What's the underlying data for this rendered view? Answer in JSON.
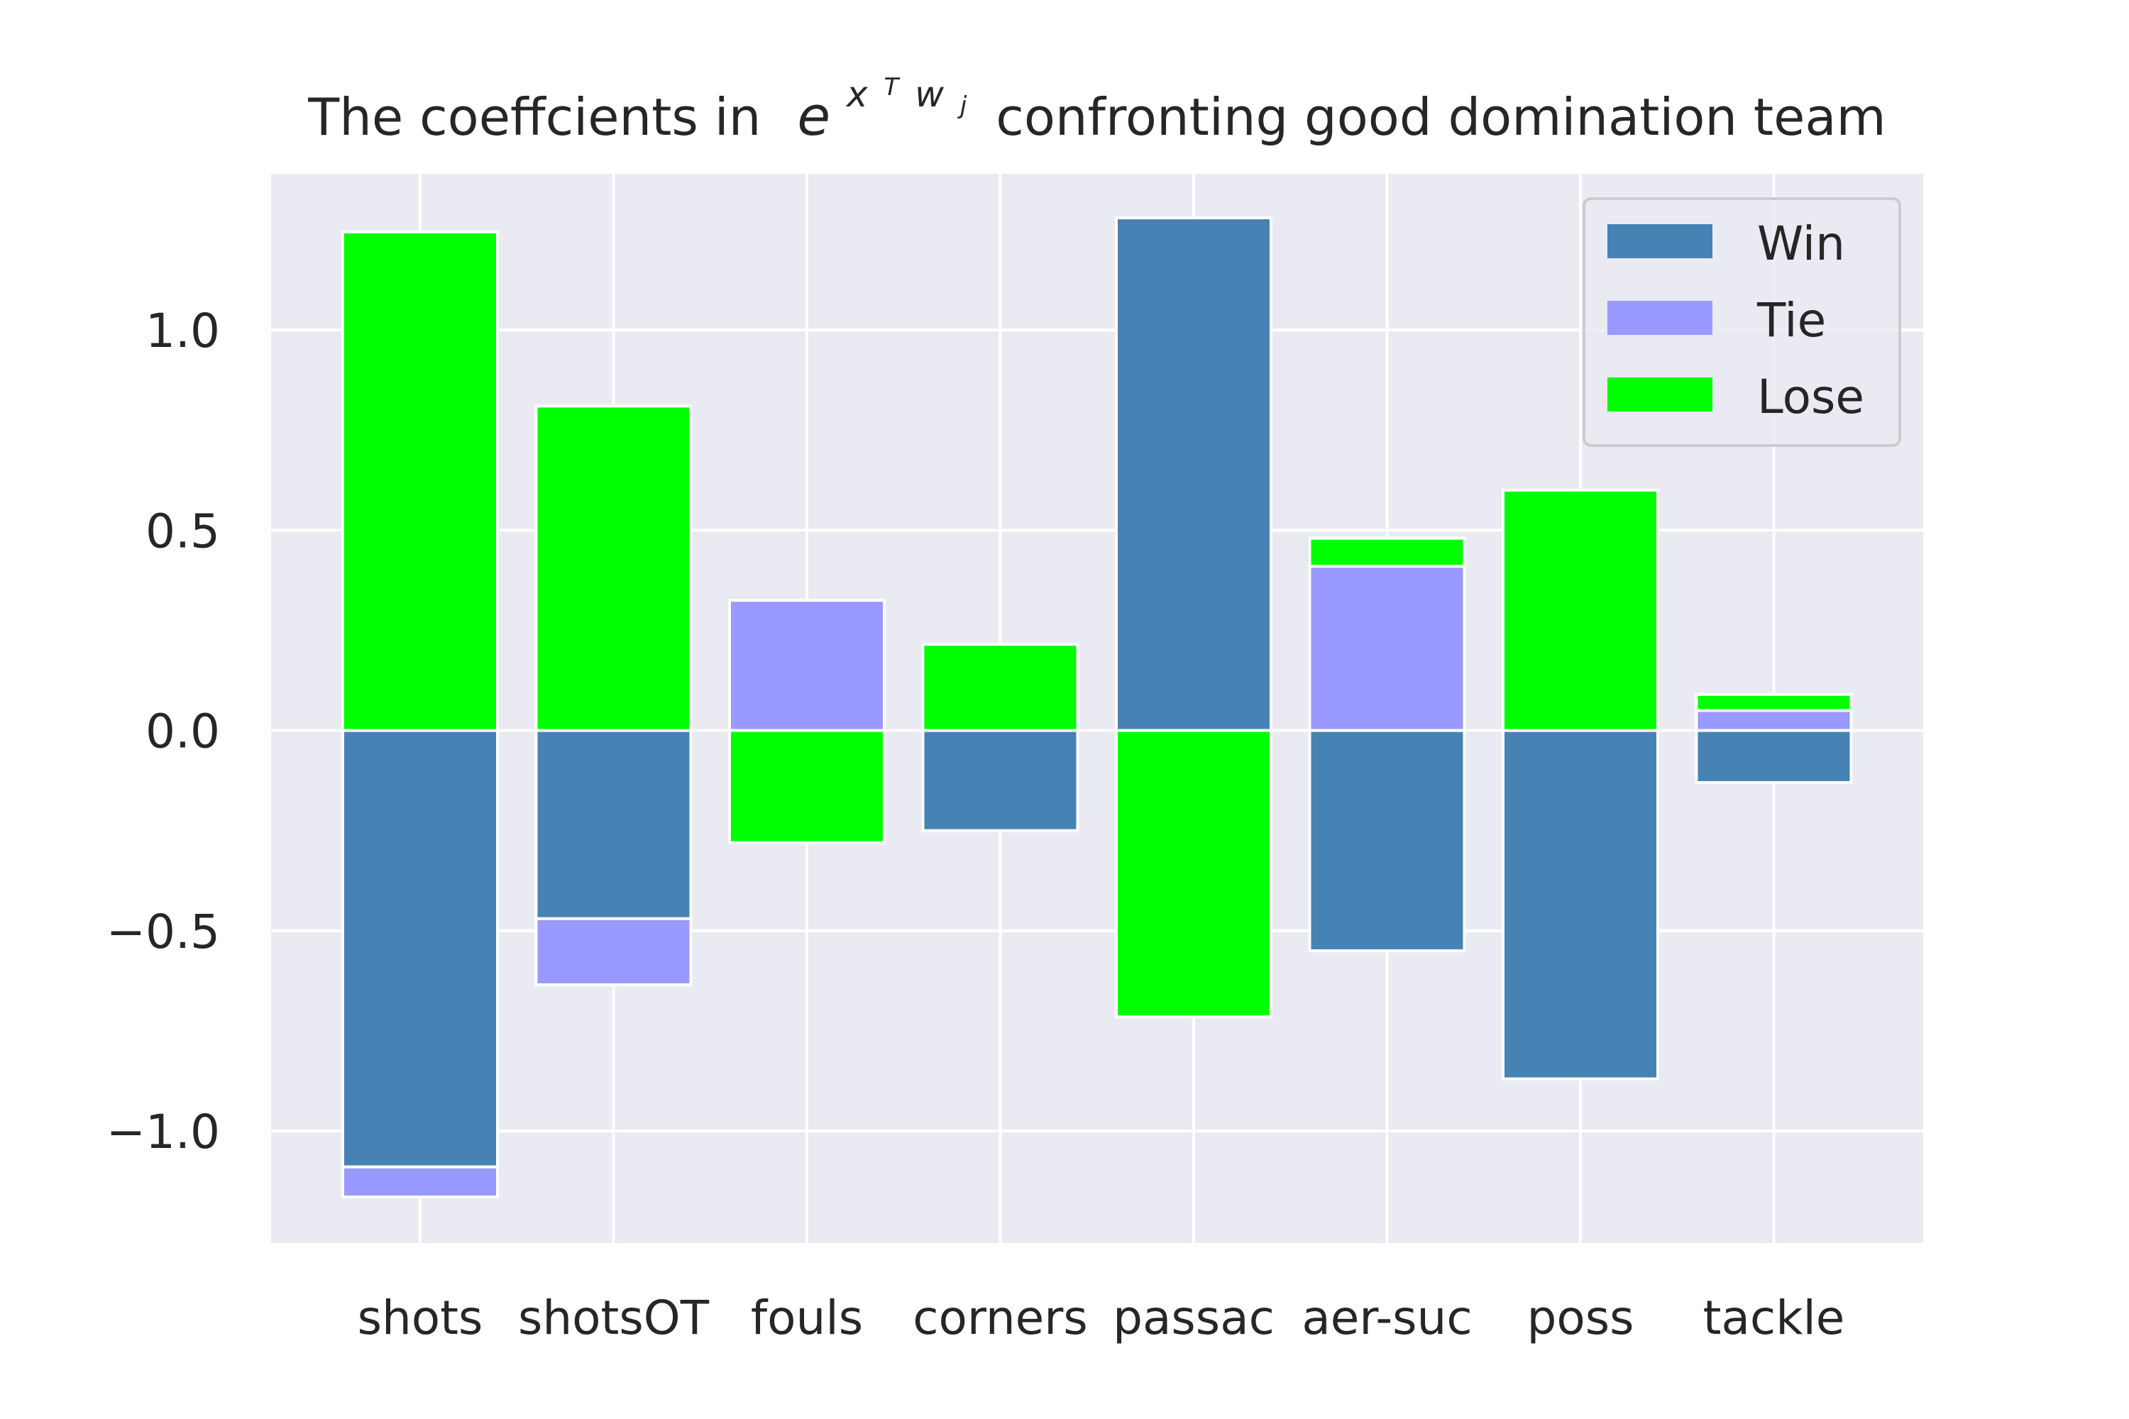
{
  "chart_data": {
    "type": "bar",
    "stacked": true,
    "title": {
      "prefix": "The coeffcients in",
      "math_base": "e",
      "math_sup_x": "x",
      "math_sup_T": "T",
      "math_sup_w": "w",
      "math_sub_j": "j",
      "suffix": "confronting good domination team"
    },
    "xlabel": "",
    "ylabel": "",
    "categories": [
      "shots",
      "shotsOT",
      "fouls",
      "corners",
      "passac",
      "aer-suc",
      "poss",
      "tackle"
    ],
    "series": [
      {
        "name": "Win",
        "color": "#4682b4",
        "values": [
          -1.09,
          -0.47,
          0.0,
          -0.25,
          1.28,
          -0.55,
          -0.87,
          -0.13
        ]
      },
      {
        "name": "Tie",
        "color": "#9999ff",
        "values": [
          -0.075,
          -0.165,
          0.325,
          0.0,
          0.0,
          0.41,
          0.0,
          0.05
        ]
      },
      {
        "name": "Lose",
        "color": "#00ff00",
        "values": [
          1.245,
          0.81,
          -0.28,
          0.215,
          -0.715,
          0.07,
          0.6,
          0.04
        ]
      }
    ],
    "ylim": [
      -1.28,
      1.39
    ],
    "yticks": [
      {
        "value": 1.0,
        "label": "1.0"
      },
      {
        "value": 0.5,
        "label": "0.5"
      },
      {
        "value": 0.0,
        "label": "0.0"
      },
      {
        "value": -0.5,
        "label": "−0.5"
      },
      {
        "value": -1.0,
        "label": "−1.0"
      }
    ],
    "grid": true,
    "legend_position": "top-right"
  }
}
